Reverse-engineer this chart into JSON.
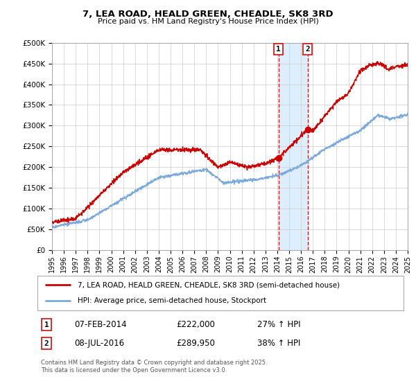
{
  "title": "7, LEA ROAD, HEALD GREEN, CHEADLE, SK8 3RD",
  "subtitle": "Price paid vs. HM Land Registry's House Price Index (HPI)",
  "legend_line1": "7, LEA ROAD, HEALD GREEN, CHEADLE, SK8 3RD (semi-detached house)",
  "legend_line2": "HPI: Average price, semi-detached house, Stockport",
  "footer": "Contains HM Land Registry data © Crown copyright and database right 2025.\nThis data is licensed under the Open Government Licence v3.0.",
  "sale1_date": "07-FEB-2014",
  "sale1_price": 222000,
  "sale1_hpi": "27% ↑ HPI",
  "sale2_date": "08-JUL-2016",
  "sale2_price": 289950,
  "sale2_hpi": "38% ↑ HPI",
  "sale1_year": 2014.1,
  "sale2_year": 2016.55,
  "red_color": "#cc0000",
  "blue_color": "#7aaadd",
  "background_color": "#ffffff",
  "grid_color": "#cccccc",
  "shaded_color": "#ddeeff",
  "ylim_min": 0,
  "ylim_max": 500000,
  "xlim_min": 1995,
  "xlim_max": 2025
}
